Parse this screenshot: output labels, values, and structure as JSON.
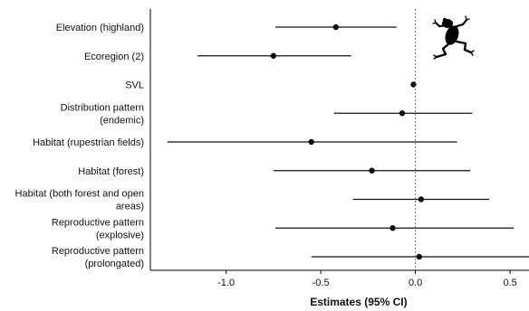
{
  "chart_data": {
    "type": "forest",
    "title": "",
    "xlabel": "Estimates (95% CI)",
    "ylabel": "",
    "xlim": [
      -1.4,
      0.6
    ],
    "x_ticks": [
      -1.0,
      -0.5,
      0.0,
      0.5
    ],
    "x_tick_labels": [
      "-1.0",
      "-0.5",
      "0.0",
      "0.5"
    ],
    "reference_line": 0,
    "reference_line_style": "dotted",
    "grid": false,
    "icon": "frog-silhouette-icon",
    "colors": {
      "marks": "#111111",
      "reference": "#777777"
    },
    "rows": [
      {
        "label": [
          "Elevation (highland)"
        ],
        "estimate": -0.42,
        "lower": -0.74,
        "upper": -0.1
      },
      {
        "label": [
          "Ecoregion (2)"
        ],
        "estimate": -0.75,
        "lower": -1.15,
        "upper": -0.34
      },
      {
        "label": [
          "SVL"
        ],
        "estimate": -0.01,
        "lower": -0.02,
        "upper": 0.0
      },
      {
        "label": [
          "Distribution pattern",
          "(endemic)"
        ],
        "estimate": -0.07,
        "lower": -0.43,
        "upper": 0.3
      },
      {
        "label": [
          "Habitat (rupestrian fields)"
        ],
        "estimate": -0.55,
        "lower": -1.31,
        "upper": 0.22
      },
      {
        "label": [
          "Habitat (forest)"
        ],
        "estimate": -0.23,
        "lower": -0.75,
        "upper": 0.29
      },
      {
        "label": [
          "Habitat (both forest and open",
          "areas)"
        ],
        "estimate": 0.03,
        "lower": -0.33,
        "upper": 0.39
      },
      {
        "label": [
          "Reproductive pattern",
          "(explosive)"
        ],
        "estimate": -0.12,
        "lower": -0.74,
        "upper": 0.52
      },
      {
        "label": [
          "Reproductive pattern",
          "(prolongated)"
        ],
        "estimate": 0.02,
        "lower": -0.55,
        "upper": 0.6
      }
    ]
  }
}
